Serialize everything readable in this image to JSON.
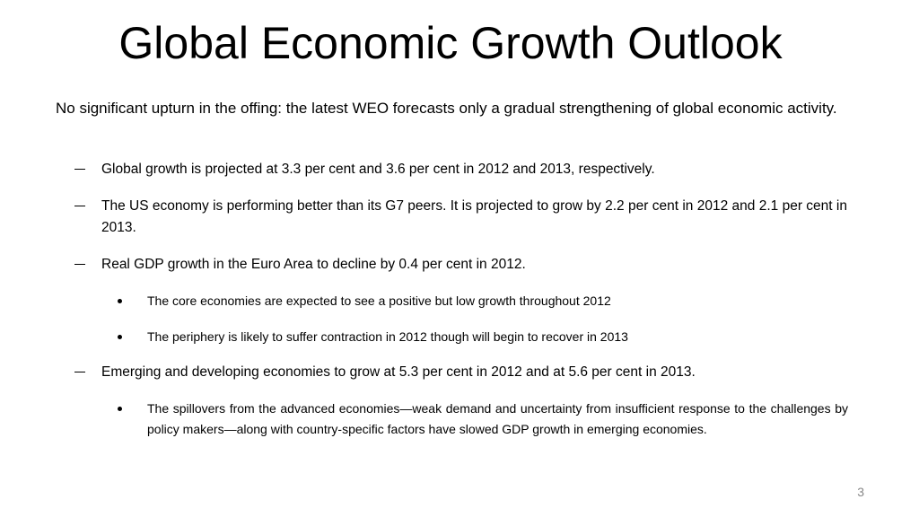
{
  "title": "Global Economic Growth Outlook",
  "intro": "No significant upturn in the offing: the latest WEO forecasts only a gradual strengthening of global economic activity.",
  "bullets": [
    {
      "text": "Global growth is projected at 3.3 per cent and 3.6 per cent in 2012 and 2013, respectively."
    },
    {
      "text": "The US economy is performing better than its G7 peers. It is projected to grow by 2.2 per cent in 2012 and 2.1 per cent in 2013."
    },
    {
      "text": "Real GDP growth in the Euro Area to decline by 0.4 per cent in 2012.",
      "sub_bullets": [
        "The core economies are expected to see a positive  but low growth throughout 2012",
        "The periphery is likely to suffer contraction in 2012 though will begin to recover in 2013"
      ]
    },
    {
      "text": "Emerging and developing economies to grow at 5.3 per cent in 2012 and at 5.6 per cent in 2013.",
      "sub_bullets": [
        "The spillovers from the advanced economies—weak demand and uncertainty from insufficient response to the challenges by policy makers—along with country-specific factors have slowed GDP growth in emerging economies."
      ]
    }
  ],
  "page_number": 3
}
